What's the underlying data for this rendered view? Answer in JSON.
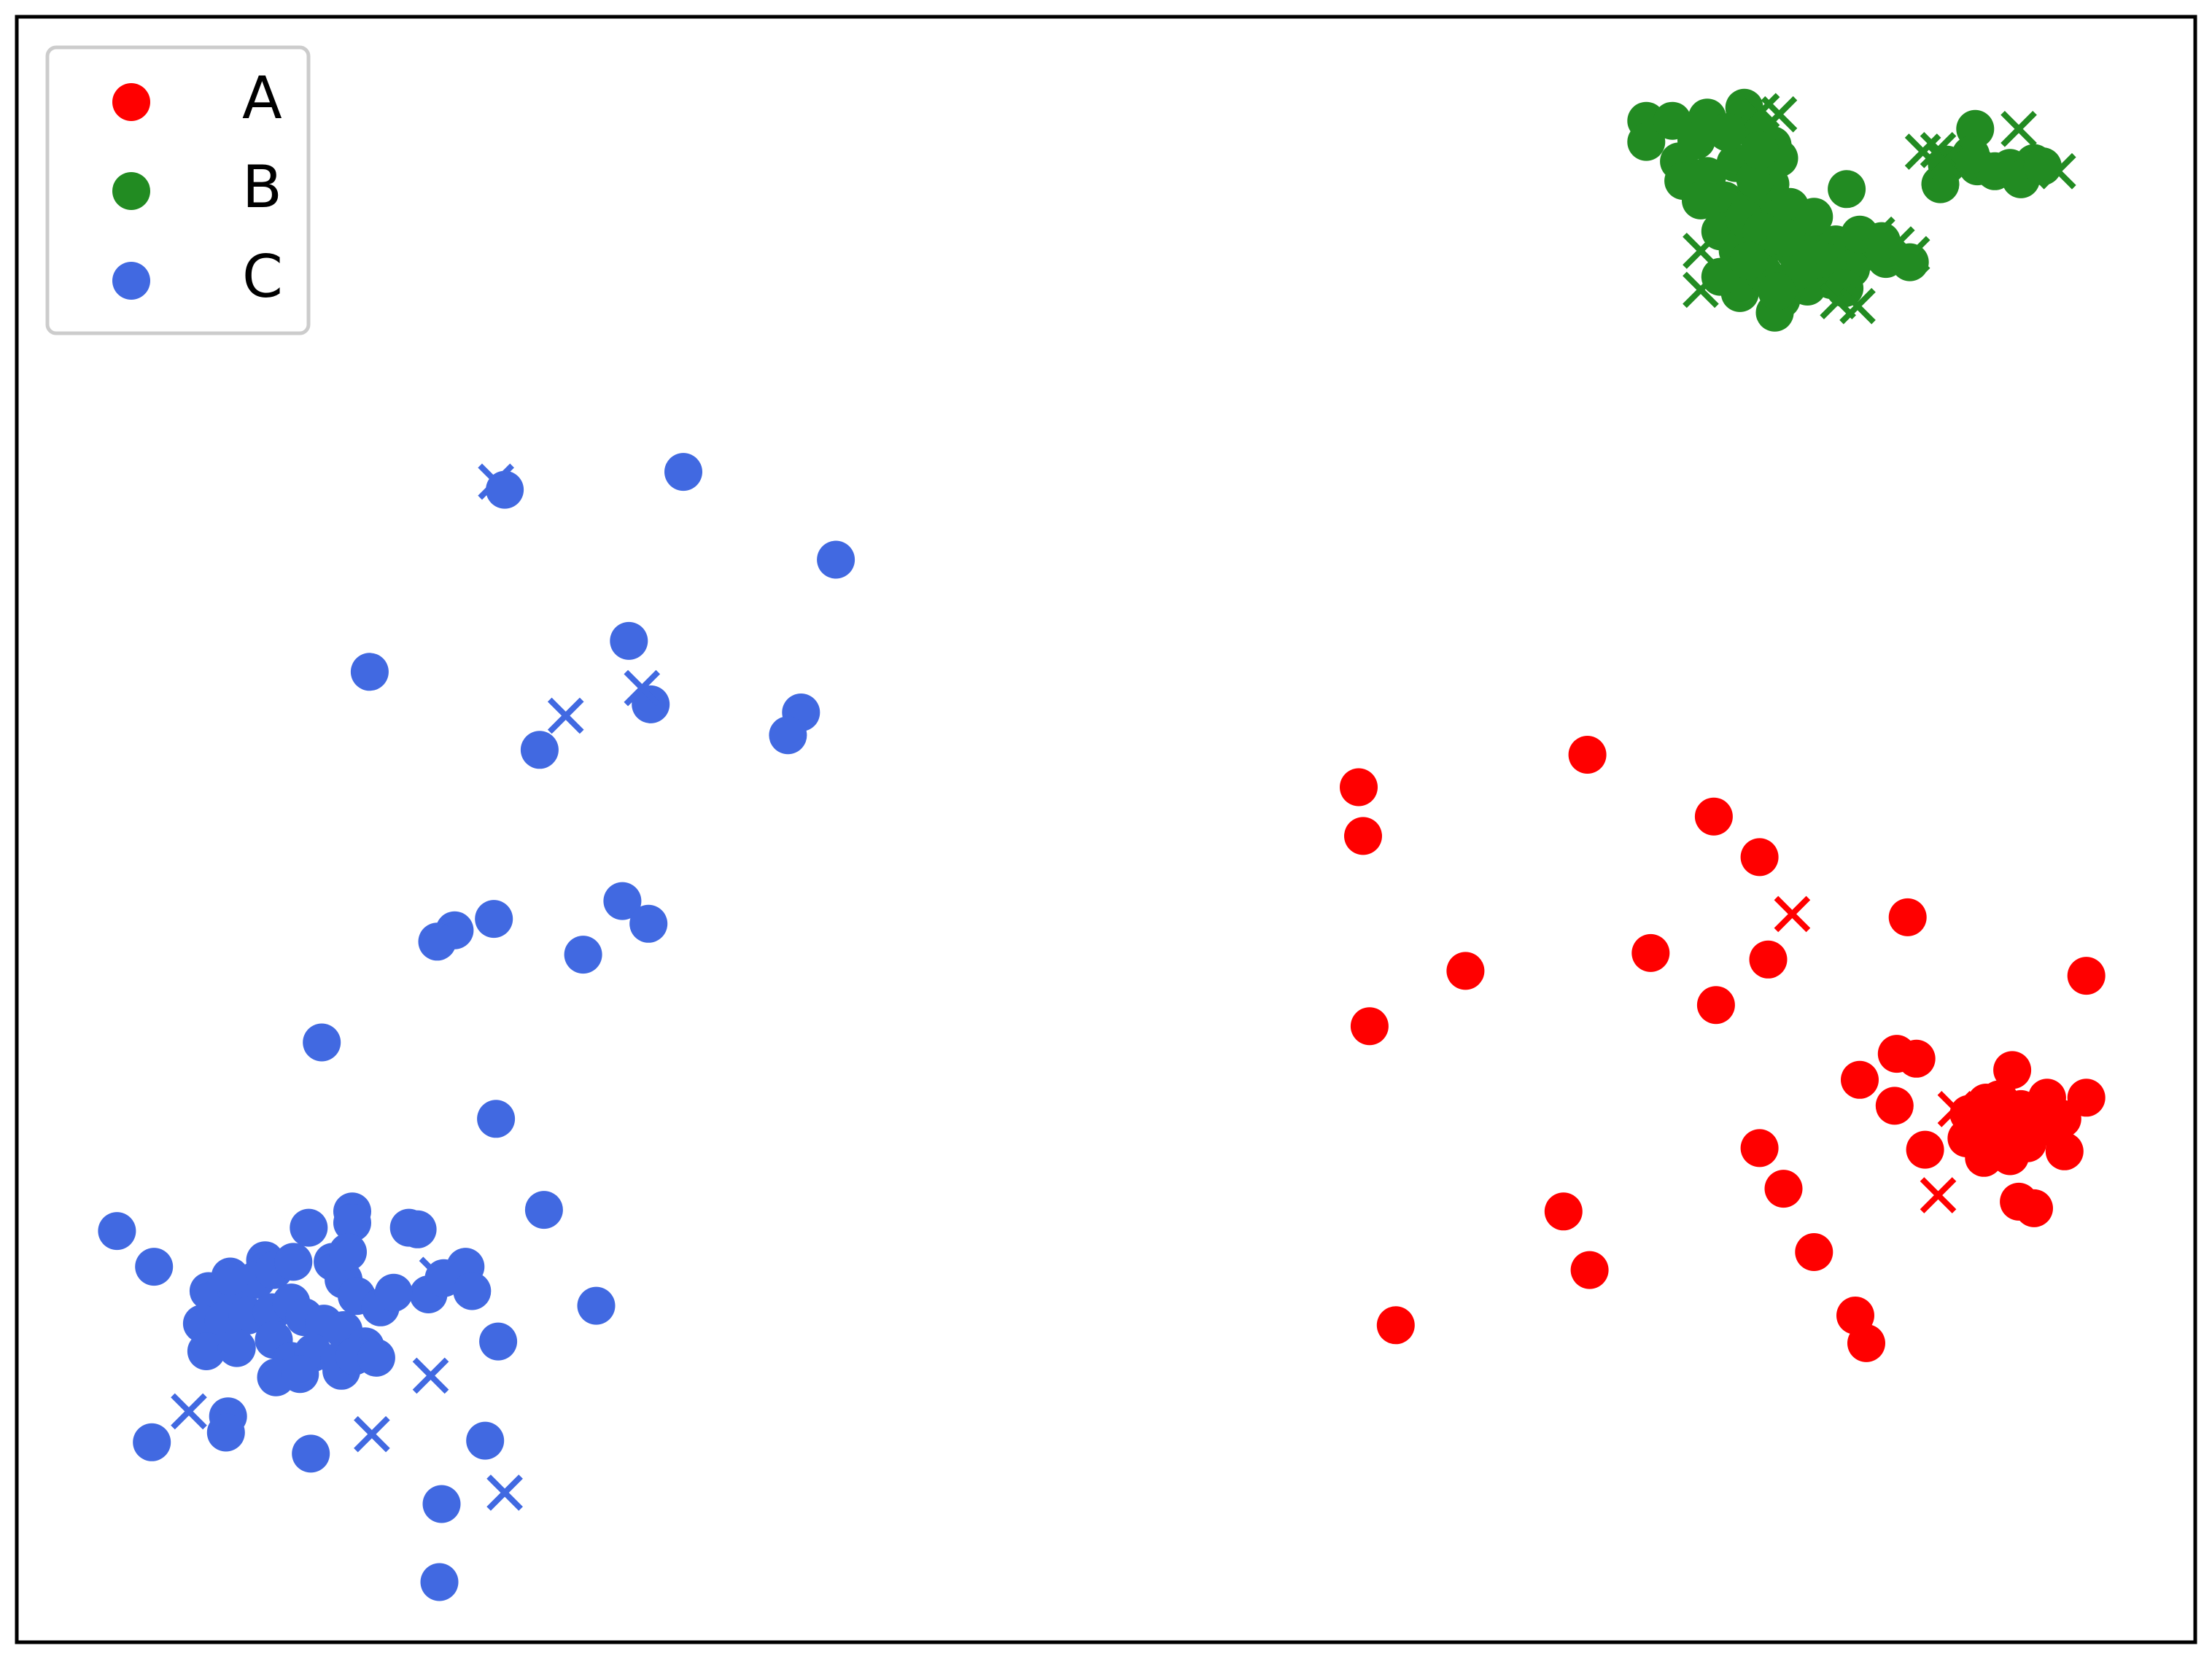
{
  "chart_data": {
    "type": "scatter",
    "title": "",
    "xlabel": "",
    "ylabel": "",
    "xlim": [
      0,
      100
    ],
    "ylim": [
      0,
      100
    ],
    "grid": false,
    "axes_ticks": false,
    "legend": {
      "placement": "top-left",
      "entries": [
        "A",
        "B",
        "C"
      ]
    },
    "series": [
      {
        "name": "A",
        "color": "#ff0000",
        "points": [
          [
            61.6,
            52.6
          ],
          [
            61.8,
            49.6
          ],
          [
            62.1,
            37.9
          ],
          [
            66.5,
            41.3
          ],
          [
            72.1,
            54.6
          ],
          [
            75.0,
            42.4
          ],
          [
            77.9,
            50.8
          ],
          [
            78.0,
            39.2
          ],
          [
            80.0,
            48.3
          ],
          [
            80.4,
            42.0
          ],
          [
            80.0,
            30.4
          ],
          [
            81.1,
            27.9
          ],
          [
            82.5,
            24.0
          ],
          [
            84.4,
            20.1
          ],
          [
            84.9,
            18.4
          ],
          [
            71.0,
            26.5
          ],
          [
            72.2,
            22.9
          ],
          [
            63.3,
            19.5
          ],
          [
            86.8,
            44.6
          ],
          [
            84.6,
            34.6
          ],
          [
            86.3,
            36.2
          ],
          [
            87.2,
            35.9
          ],
          [
            86.2,
            33.0
          ],
          [
            87.6,
            30.3
          ],
          [
            91.6,
            35.2
          ],
          [
            95.0,
            41.0
          ],
          [
            95.0,
            33.5
          ],
          [
            91.9,
            27.1
          ],
          [
            92.6,
            26.7
          ],
          [
            94.0,
            30.2
          ],
          [
            89.6,
            32.5
          ],
          [
            90.5,
            31.4
          ],
          [
            91.2,
            32.0
          ],
          [
            92.0,
            32.8
          ],
          [
            90.8,
            30.8
          ],
          [
            92.8,
            31.6
          ],
          [
            93.9,
            32.2
          ],
          [
            91.5,
            29.9
          ],
          [
            90.0,
            31.9
          ],
          [
            92.3,
            30.7
          ],
          [
            91.0,
            33.4
          ],
          [
            89.5,
            31.0
          ],
          [
            90.3,
            29.8
          ],
          [
            93.2,
            33.5
          ],
          [
            91.8,
            31.2
          ],
          [
            90.4,
            33.2
          ],
          [
            92.5,
            32.1
          ],
          [
            91.1,
            30.2
          ]
        ],
        "crosses": [
          [
            81.5,
            44.8
          ],
          [
            88.2,
            27.5
          ],
          [
            89.0,
            32.8
          ]
        ]
      },
      {
        "name": "B",
        "color": "#228b22",
        "points": [
          [
            74.8,
            93.6
          ],
          [
            74.8,
            92.3
          ],
          [
            76.0,
            93.6
          ],
          [
            77.6,
            93.8
          ],
          [
            79.3,
            94.4
          ],
          [
            79.8,
            93.0
          ],
          [
            80.6,
            92.1
          ],
          [
            76.3,
            91.1
          ],
          [
            76.5,
            89.9
          ],
          [
            77.6,
            90.2
          ],
          [
            78.4,
            88.7
          ],
          [
            79.6,
            88.4
          ],
          [
            80.5,
            89.7
          ],
          [
            81.0,
            87.7
          ],
          [
            78.2,
            86.8
          ],
          [
            79.0,
            85.6
          ],
          [
            80.3,
            85.9
          ],
          [
            81.6,
            85.6
          ],
          [
            82.3,
            86.5
          ],
          [
            83.5,
            86.0
          ],
          [
            84.8,
            85.5
          ],
          [
            85.8,
            85.1
          ],
          [
            86.9,
            84.9
          ],
          [
            84.2,
            84.5
          ],
          [
            83.3,
            83.8
          ],
          [
            82.2,
            83.4
          ],
          [
            81.0,
            82.6
          ],
          [
            79.1,
            83.0
          ],
          [
            78.2,
            84.0
          ],
          [
            80.7,
            81.8
          ],
          [
            84.0,
            89.4
          ],
          [
            89.9,
            93.1
          ],
          [
            88.6,
            90.9
          ],
          [
            88.3,
            89.7
          ],
          [
            90.0,
            90.8
          ],
          [
            91.5,
            90.7
          ],
          [
            92.6,
            91.0
          ],
          [
            92.0,
            90.0
          ],
          [
            93.0,
            90.8
          ],
          [
            90.8,
            90.5
          ],
          [
            89.7,
            91.5
          ],
          [
            78.9,
            91.0
          ],
          [
            79.8,
            90.0
          ],
          [
            80.9,
            91.3
          ],
          [
            79.3,
            87.6
          ],
          [
            80.1,
            86.8
          ],
          [
            81.4,
            88.3
          ],
          [
            82.5,
            87.7
          ],
          [
            83.1,
            84.9
          ],
          [
            84.6,
            86.6
          ],
          [
            85.6,
            86.2
          ],
          [
            82.7,
            85.1
          ],
          [
            81.8,
            84.4
          ],
          [
            80.2,
            84.2
          ],
          [
            79.5,
            85.0
          ],
          [
            81.2,
            86.4
          ],
          [
            77.1,
            92.4
          ],
          [
            78.5,
            92.9
          ],
          [
            80.0,
            91.8
          ],
          [
            77.3,
            88.7
          ],
          [
            80.8,
            83.1
          ],
          [
            83.9,
            83.3
          ]
        ],
        "crosses": [
          [
            77.3,
            85.6
          ],
          [
            77.3,
            83.2
          ],
          [
            80.1,
            94.2
          ],
          [
            80.9,
            94.0
          ],
          [
            83.6,
            82.5
          ],
          [
            84.5,
            82.2
          ],
          [
            85.4,
            86.6
          ],
          [
            86.3,
            86.0
          ],
          [
            87.0,
            85.4
          ],
          [
            87.5,
            91.7
          ],
          [
            88.2,
            91.8
          ],
          [
            91.9,
            93.1
          ],
          [
            93.7,
            90.5
          ],
          [
            88.5,
            91.1
          ]
        ]
      },
      {
        "name": "C",
        "color": "#4169e1",
        "points": [
          [
            22.4,
            70.9
          ],
          [
            30.6,
            72.0
          ],
          [
            37.6,
            66.6
          ],
          [
            16.2,
            59.7
          ],
          [
            28.1,
            61.6
          ],
          [
            29.1,
            57.7
          ],
          [
            36.0,
            57.2
          ],
          [
            35.4,
            55.8
          ],
          [
            24.0,
            54.9
          ],
          [
            27.8,
            45.6
          ],
          [
            29.0,
            44.2
          ],
          [
            21.9,
            44.5
          ],
          [
            20.1,
            43.8
          ],
          [
            19.3,
            43.1
          ],
          [
            26.0,
            42.3
          ],
          [
            14.0,
            36.9
          ],
          [
            22.0,
            32.2
          ],
          [
            15.4,
            26.5
          ],
          [
            15.4,
            25.8
          ],
          [
            24.2,
            26.6
          ],
          [
            4.6,
            25.3
          ],
          [
            6.3,
            23.1
          ],
          [
            11.4,
            23.5
          ],
          [
            13.4,
            25.5
          ],
          [
            18.0,
            25.5
          ],
          [
            20.6,
            23.1
          ],
          [
            26.6,
            20.7
          ],
          [
            22.1,
            18.5
          ],
          [
            6.2,
            12.3
          ],
          [
            9.7,
            13.9
          ],
          [
            9.6,
            12.9
          ],
          [
            13.5,
            11.6
          ],
          [
            21.5,
            12.4
          ],
          [
            19.5,
            8.5
          ],
          [
            19.4,
            3.7
          ],
          [
            8.8,
            21.6
          ],
          [
            9.1,
            21.1
          ],
          [
            10.1,
            21.6
          ],
          [
            11.0,
            22.3
          ],
          [
            11.8,
            22.9
          ],
          [
            12.7,
            23.4
          ],
          [
            14.5,
            23.4
          ],
          [
            15.0,
            22.3
          ],
          [
            15.6,
            21.3
          ],
          [
            16.7,
            20.6
          ],
          [
            18.4,
            25.4
          ],
          [
            18.9,
            21.4
          ],
          [
            19.6,
            22.4
          ],
          [
            20.9,
            21.6
          ],
          [
            8.5,
            19.6
          ],
          [
            9.5,
            19.8
          ],
          [
            10.6,
            20.1
          ],
          [
            11.7,
            20.3
          ],
          [
            12.6,
            20.9
          ],
          [
            13.2,
            20.0
          ],
          [
            14.1,
            19.6
          ],
          [
            15.0,
            19.2
          ],
          [
            8.7,
            17.9
          ],
          [
            10.1,
            18.1
          ],
          [
            11.8,
            18.6
          ],
          [
            12.6,
            17.3
          ],
          [
            13.6,
            17.8
          ],
          [
            14.8,
            17.3
          ],
          [
            16.0,
            18.2
          ],
          [
            11.9,
            16.3
          ],
          [
            13.0,
            16.5
          ],
          [
            14.9,
            16.7
          ],
          [
            15.5,
            17.6
          ],
          [
            16.5,
            17.5
          ],
          [
            17.3,
            21.5
          ],
          [
            9.8,
            22.5
          ],
          [
            15.2,
            24.0
          ]
        ],
        "crosses": [
          [
            22.0,
            71.4
          ],
          [
            28.7,
            58.7
          ],
          [
            25.2,
            57.0
          ],
          [
            19.3,
            22.6
          ],
          [
            7.9,
            14.2
          ],
          [
            16.3,
            12.8
          ],
          [
            19.0,
            16.4
          ],
          [
            22.4,
            9.2
          ]
        ]
      }
    ]
  }
}
